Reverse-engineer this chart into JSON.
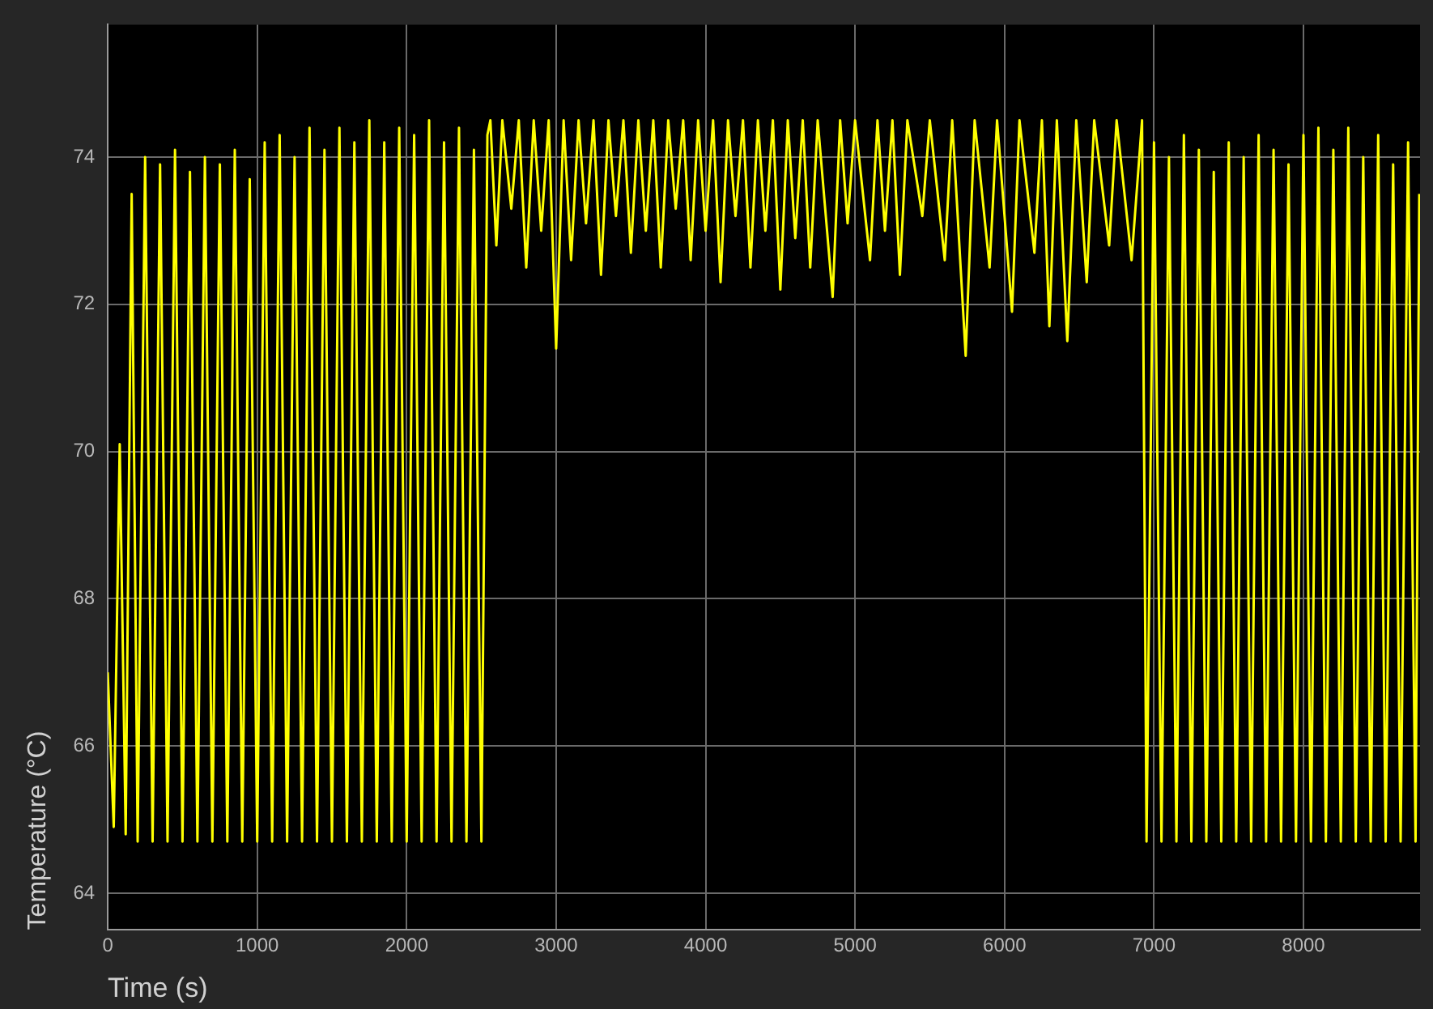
{
  "chart_data": {
    "type": "line",
    "xlabel": "Time (s)",
    "ylabel": "Temperature (°C)",
    "xlim": [
      0,
      8780
    ],
    "ylim": [
      63.5,
      75.8
    ],
    "xticks": [
      0,
      1000,
      2000,
      3000,
      4000,
      5000,
      6000,
      7000,
      8000
    ],
    "yticks": [
      64,
      66,
      68,
      70,
      72,
      74
    ],
    "grid": true,
    "legend": false,
    "marker": "none",
    "line_style": "solid",
    "series": [
      {
        "color": "#ffff00",
        "x": [
          0,
          40,
          80,
          120,
          160,
          200,
          250,
          300,
          350,
          400,
          450,
          500,
          550,
          600,
          650,
          700,
          750,
          800,
          850,
          900,
          950,
          1000,
          1050,
          1100,
          1150,
          1200,
          1250,
          1300,
          1350,
          1400,
          1450,
          1500,
          1550,
          1600,
          1650,
          1700,
          1750,
          1800,
          1850,
          1900,
          1950,
          2000,
          2050,
          2100,
          2150,
          2200,
          2250,
          2300,
          2350,
          2400,
          2450,
          2500,
          2540,
          2560,
          2600,
          2640,
          2700,
          2750,
          2800,
          2850,
          2900,
          2950,
          3000,
          3050,
          3100,
          3150,
          3200,
          3250,
          3300,
          3350,
          3400,
          3450,
          3500,
          3550,
          3600,
          3650,
          3700,
          3750,
          3800,
          3850,
          3900,
          3950,
          4000,
          4050,
          4100,
          4150,
          4200,
          4250,
          4300,
          4350,
          4400,
          4450,
          4500,
          4550,
          4600,
          4650,
          4700,
          4750,
          4850,
          4900,
          4950,
          5000,
          5100,
          5150,
          5200,
          5250,
          5300,
          5350,
          5450,
          5500,
          5600,
          5650,
          5740,
          5800,
          5900,
          5950,
          6050,
          6100,
          6200,
          6250,
          6300,
          6350,
          6420,
          6480,
          6550,
          6600,
          6700,
          6750,
          6850,
          6920,
          6950,
          7000,
          7050,
          7100,
          7150,
          7200,
          7250,
          7300,
          7350,
          7400,
          7450,
          7500,
          7550,
          7600,
          7650,
          7700,
          7750,
          7800,
          7850,
          7900,
          7950,
          8000,
          8050,
          8100,
          8150,
          8200,
          8250,
          8300,
          8350,
          8400,
          8450,
          8500,
          8550,
          8600,
          8650,
          8700,
          8750,
          8775
        ],
        "values": [
          67,
          64.9,
          70.1,
          64.8,
          73.5,
          64.7,
          74.0,
          64.7,
          73.9,
          64.7,
          74.1,
          64.7,
          73.8,
          64.7,
          74.0,
          64.7,
          73.9,
          64.7,
          74.1,
          64.7,
          73.7,
          64.7,
          74.2,
          64.7,
          74.3,
          64.7,
          74.0,
          64.7,
          74.4,
          64.7,
          74.1,
          64.7,
          74.4,
          64.7,
          74.2,
          64.7,
          74.5,
          64.7,
          74.2,
          64.7,
          74.4,
          64.7,
          74.3,
          64.7,
          74.5,
          64.7,
          74.2,
          64.7,
          74.4,
          64.7,
          74.1,
          64.7,
          74.3,
          74.5,
          72.8,
          74.5,
          73.3,
          74.5,
          72.5,
          74.5,
          73.0,
          74.5,
          71.4,
          74.5,
          72.6,
          74.5,
          73.1,
          74.5,
          72.4,
          74.5,
          73.2,
          74.5,
          72.7,
          74.5,
          73.0,
          74.5,
          72.5,
          74.5,
          73.3,
          74.5,
          72.6,
          74.5,
          73.0,
          74.5,
          72.3,
          74.5,
          73.2,
          74.5,
          72.5,
          74.5,
          73.0,
          74.5,
          72.2,
          74.5,
          72.9,
          74.5,
          72.5,
          74.5,
          72.1,
          74.5,
          73.1,
          74.5,
          72.6,
          74.5,
          73.0,
          74.5,
          72.4,
          74.5,
          73.2,
          74.5,
          72.6,
          74.5,
          71.3,
          74.5,
          72.5,
          74.5,
          71.9,
          74.5,
          72.7,
          74.5,
          71.7,
          74.5,
          71.5,
          74.5,
          72.3,
          74.5,
          72.8,
          74.5,
          72.6,
          74.5,
          64.7,
          74.2,
          64.7,
          74.0,
          64.7,
          74.3,
          64.7,
          74.1,
          64.7,
          73.8,
          64.7,
          74.2,
          64.7,
          74.0,
          64.7,
          74.3,
          64.7,
          74.1,
          64.7,
          73.9,
          64.7,
          74.3,
          64.7,
          74.4,
          64.7,
          74.1,
          64.7,
          74.4,
          64.7,
          74.0,
          64.7,
          74.3,
          64.7,
          73.9,
          64.7,
          74.2,
          64.7,
          73.5
        ]
      }
    ]
  }
}
